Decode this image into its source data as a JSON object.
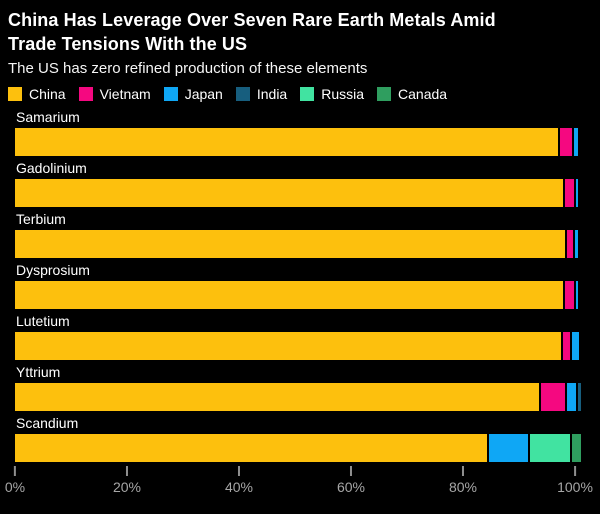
{
  "header": {
    "title_lines": [
      "China Has Leverage Over Seven Rare Earth Metals Amid",
      "Trade Tensions With the US"
    ],
    "subtitle": "The US has zero refined production of these elements"
  },
  "colors": {
    "background": "#000000",
    "text_primary": "#ffffff",
    "axis_text": "#a6a6a6",
    "tick_mark": "#8f8f8f"
  },
  "chart_data": {
    "type": "bar",
    "orientation": "horizontal",
    "stacked": true,
    "unit": "%",
    "title": "China Has Leverage Over Seven Rare Earth Metals Amid Trade Tensions With the US",
    "subtitle": "The US has zero refined production of these elements",
    "xlabel": "",
    "ylabel": "",
    "xlim": [
      0,
      100
    ],
    "x_ticks": [
      "0%",
      "20%",
      "40%",
      "60%",
      "80%",
      "100%"
    ],
    "grid": false,
    "legend_position": "top",
    "categories": [
      "Samarium",
      "Gadolinium",
      "Terbium",
      "Dysprosium",
      "Lutetium",
      "Yttrium",
      "Scandium"
    ],
    "series": [
      {
        "name": "China",
        "color": "#FDC00D",
        "values": [
          97.0,
          97.9,
          98.2,
          97.9,
          97.5,
          93.6,
          84.3
        ]
      },
      {
        "name": "Vietnam",
        "color": "#F50880",
        "values": [
          2.1,
          1.5,
          1.0,
          1.5,
          1.3,
          4.2,
          0
        ]
      },
      {
        "name": "Japan",
        "color": "#0FA7F5",
        "values": [
          0.7,
          0.5,
          0.6,
          0.5,
          1.2,
          1.7,
          6.9
        ]
      },
      {
        "name": "India",
        "color": "#175E7E",
        "values": [
          0,
          0,
          0,
          0,
          0,
          0.5,
          0
        ]
      },
      {
        "name": "Russia",
        "color": "#41E3A1",
        "values": [
          0,
          0,
          0,
          0,
          0,
          0,
          7.2
        ]
      },
      {
        "name": "Canada",
        "color": "#2F9E5F",
        "values": [
          0,
          0,
          0,
          0,
          0,
          0,
          1.6
        ]
      }
    ]
  }
}
